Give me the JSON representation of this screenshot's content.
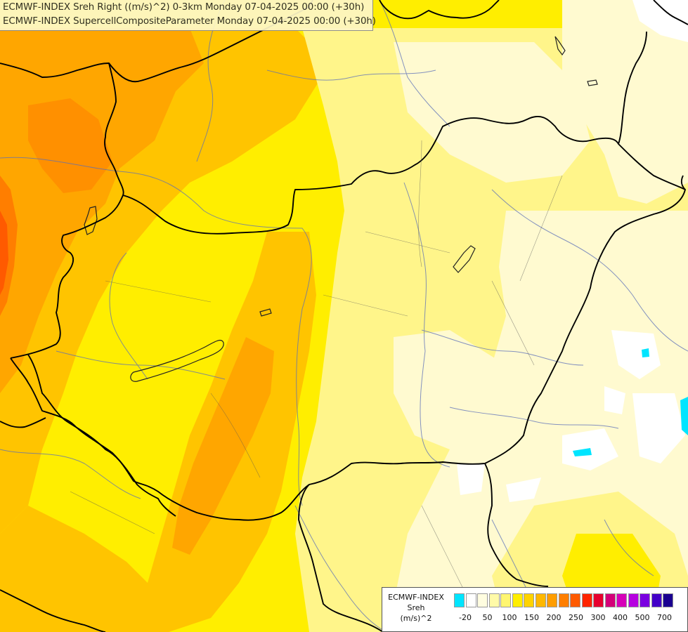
{
  "header": {
    "line1": "ECMWF-INDEX Sreh Right ((m/s)^2) 0-3km Monday 07-04-2025 00:00 (+30h)",
    "line2": "ECMWF-INDEX SupercellCompositeParameter Monday 07-04-2025 00:00 (+30h)"
  },
  "legend": {
    "model": "ECMWF-INDEX",
    "variable": "Sreh",
    "unit": "(m/s)^2",
    "colors": [
      "#00e5ff",
      "#ffffff",
      "#fffde0",
      "#fffaa8",
      "#fff670",
      "#ffee00",
      "#ffd300",
      "#ffb800",
      "#ff9d00",
      "#ff7e00",
      "#ff5a00",
      "#ff2400",
      "#e6002e",
      "#d40078",
      "#d600b8",
      "#b600e0",
      "#7a00e0",
      "#4300c8",
      "#1a0090"
    ],
    "tick_labels": [
      "-20",
      "50",
      "100",
      "150",
      "200",
      "250",
      "300",
      "400",
      "500",
      "700"
    ]
  },
  "map": {
    "field_colors": {
      "very_light": "#fffad0",
      "light": "#fff58a",
      "yellow": "#ffee00",
      "gold": "#ffcf00",
      "orange": "#ffa600",
      "dark_orange": "#ff7e00",
      "red_orange": "#ff5a00",
      "cyan": "#00e5ff"
    }
  }
}
